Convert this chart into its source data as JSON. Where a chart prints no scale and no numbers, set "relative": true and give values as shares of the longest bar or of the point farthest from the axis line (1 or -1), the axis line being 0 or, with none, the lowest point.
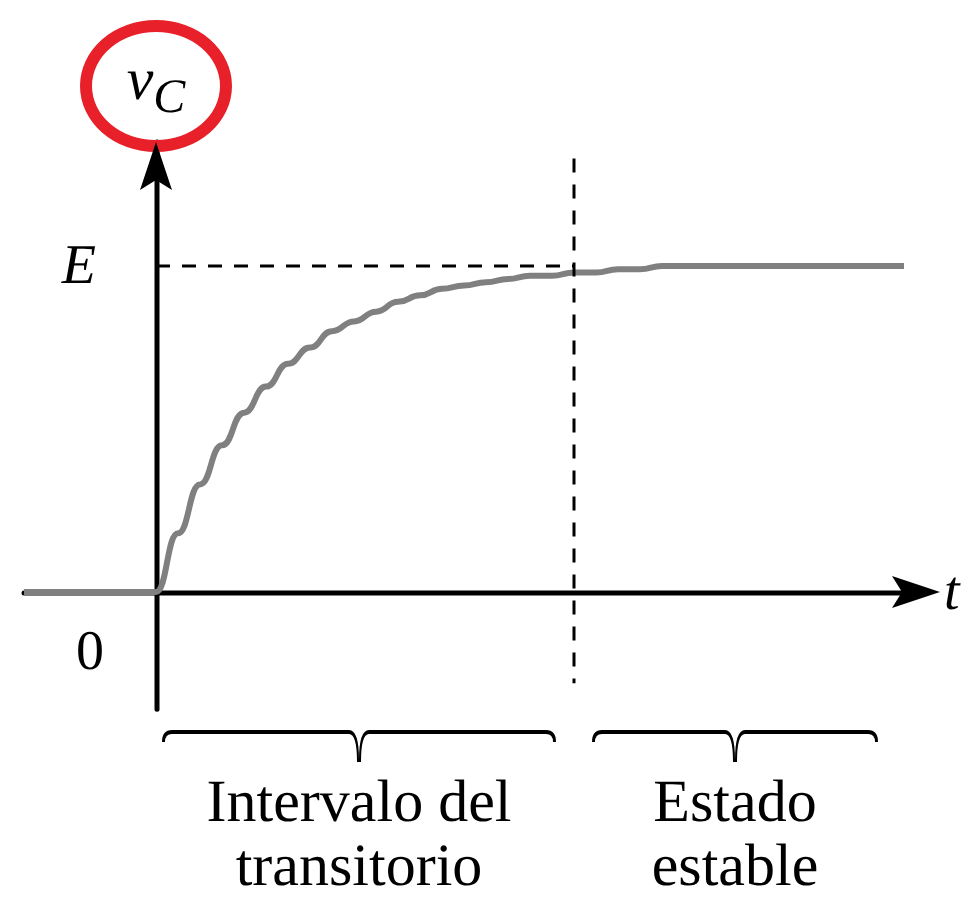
{
  "chart_data": {
    "type": "line",
    "relative": true,
    "xlabel": "t",
    "ylabel": "v$_{C}$",
    "categories": [
      null,
      null,
      null,
      null,
      null,
      null,
      null,
      null,
      null,
      null,
      null,
      null,
      null,
      null,
      null,
      null,
      null,
      null,
      null,
      null,
      null,
      null,
      null,
      null,
      null,
      null,
      null,
      null,
      null,
      null,
      null,
      null,
      null,
      null,
      null,
      null,
      null,
      null,
      null,
      null,
      null
    ],
    "series": [
      {
        "color": "#808080",
        "values": [
          0,
          0,
          0,
          0,
          0,
          0,
          0,
          0.18,
          0.33,
          0.45,
          0.55,
          0.63,
          0.7,
          0.75,
          0.8,
          0.83,
          0.86,
          0.89,
          0.91,
          0.93,
          0.94,
          0.95,
          0.96,
          0.97,
          0.97,
          0.98,
          0.98,
          0.99,
          0.99,
          1,
          1,
          1,
          1,
          1,
          1,
          1,
          1,
          1,
          1,
          1,
          1
        ]
      }
    ],
    "ref_lines": [
      {
        "axis": "y",
        "value": 1,
        "label": "E",
        "line_style": "dashed"
      }
    ],
    "annotations": [
      "0",
      "Intervalo del\ntransitorio",
      "Estado\nestable"
    ],
    "marker": "none",
    "grid": false
  }
}
